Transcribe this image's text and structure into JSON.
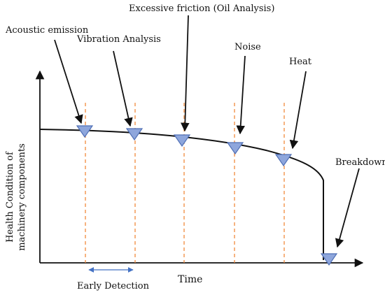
{
  "axes": {
    "x_label": "Time",
    "y_label_line1": "Health Condition of",
    "y_label_line2": "machinery components"
  },
  "labels": {
    "acoustic": "Acoustic emission",
    "vibration": "Vibration Analysis",
    "friction": "Excessive friction (Oil Analysis)",
    "noise": "Noise",
    "heat": "Heat",
    "breakdown": "Breakdown",
    "early_detection": "Early Detection"
  },
  "colors": {
    "curve": "#111111",
    "marker_fill": "#8ea6dc",
    "marker_stroke": "#4f6fb5",
    "dashed_line": "#f08a3c",
    "detection_arrow": "#4472c4"
  }
}
